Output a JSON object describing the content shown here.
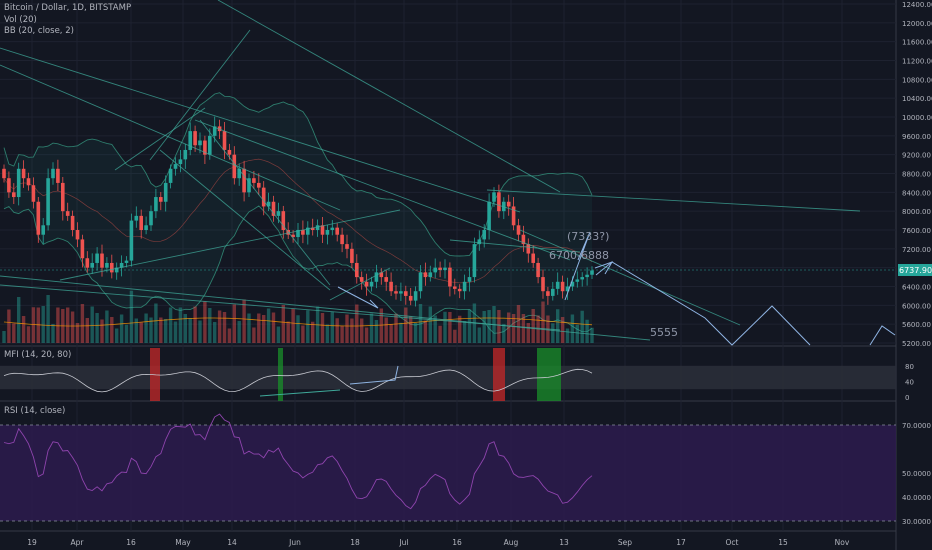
{
  "symbol_title": "Bitcoin / Dollar, 1D, BITSTAMP",
  "legend": {
    "volume": "Vol (20)",
    "bb": "BB (20, close, 2)",
    "mfi": "MFI (14, 20, 80)",
    "rsi": "RSI (14, close)"
  },
  "current_price": "6737.90",
  "colors": {
    "background": "#131722",
    "up": "#26a69a",
    "down": "#ef5350",
    "trendline": "#3fa99a",
    "arrow": "#8fb4e3",
    "rsi_band": "#2d1b4e",
    "rsi_line": "#8e44ad",
    "mfi_oversold": "#1a8f2a",
    "mfi_overbought": "#c62828",
    "price_tag": "#26a69a"
  },
  "annotations": [
    "(7333?)",
    "6700-6888",
    "5555"
  ],
  "x_ticks": [
    "19",
    "Apr",
    "16",
    "May",
    "14",
    "Jun",
    "18",
    "Jul",
    "16",
    "Aug",
    "13",
    "Sep",
    "17",
    "Oct",
    "15",
    "Nov"
  ],
  "chart_data": [
    {
      "type": "candlestick",
      "title": "Bitcoin / Dollar, 1D, BITSTAMP",
      "yaxis_ticks": [
        12400,
        12000,
        11600,
        11200,
        10800,
        10400,
        10000,
        9600,
        9200,
        8800,
        8400,
        8000,
        7600,
        7200,
        6800,
        6400,
        6000,
        5600,
        5200
      ],
      "ylim": [
        5200,
        12400
      ],
      "close_series": [
        8700,
        8400,
        8300,
        8900,
        8700,
        8550,
        8200,
        7500,
        7700,
        8700,
        8900,
        8600,
        8000,
        7900,
        7600,
        7400,
        7000,
        6800,
        6900,
        7100,
        6800,
        6900,
        6700,
        6800,
        6900,
        6950,
        7800,
        7900,
        7600,
        7700,
        8000,
        8300,
        8200,
        8600,
        8900,
        9000,
        9100,
        9300,
        9700,
        9400,
        9500,
        9200,
        9600,
        9800,
        9700,
        9300,
        9200,
        8700,
        8900,
        8400,
        8700,
        8600,
        8500,
        8100,
        8200,
        7900,
        8000,
        7600,
        7500,
        7450,
        7600,
        7500,
        7650,
        7600,
        7700,
        7500,
        7600,
        7650,
        7500,
        7300,
        7200,
        6900,
        6600,
        6500,
        6400,
        6500,
        6700,
        6600,
        6500,
        6300,
        6250,
        6300,
        6200,
        6100,
        6300,
        6700,
        6600,
        6700,
        6800,
        6750,
        6800,
        6400,
        6350,
        6300,
        6500,
        6600,
        7300,
        7400,
        7600,
        8200,
        8400,
        8000,
        8200,
        8100,
        7700,
        7500,
        7300,
        7100,
        6900,
        6600,
        6300,
        6200,
        6350,
        6500,
        6300,
        6400,
        6500,
        6550,
        6600,
        6650,
        6740
      ],
      "price_annotations": [
        "(7333?)",
        "6700-6888",
        "5555"
      ]
    },
    {
      "type": "bar",
      "title": "Vol (20)"
    },
    {
      "type": "line",
      "title": "MFI (14, 20, 80)",
      "yaxis_ticks": [
        80,
        40,
        0
      ],
      "ylim": [
        0,
        100
      ]
    },
    {
      "type": "line",
      "title": "RSI (14, close)",
      "yaxis_ticks": [
        70.0,
        50.0,
        40.0,
        30.0
      ],
      "ylim": [
        25,
        80
      ],
      "bands": [
        30,
        70
      ]
    }
  ]
}
